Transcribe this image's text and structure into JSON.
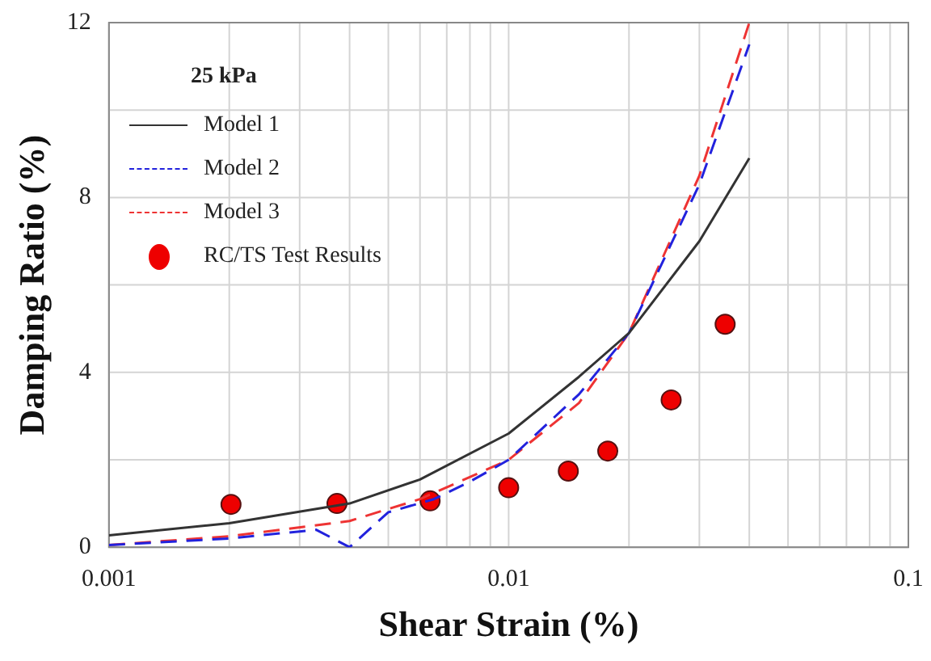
{
  "chart_data": {
    "type": "line",
    "xlabel": "Shear Strain (%)",
    "ylabel": "Damping Ratio (%)",
    "legend_title": "25 kPa",
    "log": "x",
    "xlim": [
      0.001,
      0.1
    ],
    "xticks": [
      0.001,
      0.01,
      0.1
    ],
    "ylim": [
      0,
      12
    ],
    "yticks": [
      0,
      {
        "value": 2,
        "label": null
      },
      4,
      {
        "value": 6,
        "label": null
      },
      8,
      {
        "value": 10,
        "label": null
      },
      12
    ],
    "grid": true,
    "legend": "top left",
    "marker": "none",
    "series": [
      {
        "name": "Model 1",
        "color": "#333333",
        "line_style": "solid",
        "x": [
          0.001,
          0.002,
          0.004,
          0.006,
          0.01,
          0.015,
          0.02,
          0.03,
          0.04
        ],
        "values": [
          0.27,
          0.55,
          1.0,
          1.55,
          2.6,
          3.9,
          4.9,
          7.0,
          8.9
        ]
      },
      {
        "name": "Model 2",
        "color": "#2222dd",
        "line_style": "dashed",
        "x": [
          0.001,
          0.002,
          0.0033,
          0.004,
          0.005,
          0.0065,
          0.008,
          0.01,
          0.015,
          0.02,
          0.03,
          0.04
        ],
        "values": [
          0.05,
          0.2,
          0.4,
          0.0,
          0.8,
          1.1,
          1.5,
          2.0,
          3.5,
          4.9,
          8.3,
          11.5
        ]
      },
      {
        "name": "Model 3",
        "color": "#ee3333",
        "line_style": "dashed",
        "x": [
          0.001,
          0.002,
          0.004,
          0.006,
          0.01,
          0.015,
          0.02,
          0.03,
          0.04
        ],
        "values": [
          0.05,
          0.25,
          0.6,
          1.1,
          2.0,
          3.3,
          4.9,
          8.5,
          12
        ]
      },
      {
        "name": "RC/TS Test Results",
        "type": "scatter",
        "marker": "circle",
        "color": "#ee0000",
        "x": [
          0.00202,
          0.00372,
          0.00636,
          0.01,
          0.0141,
          0.0177,
          0.0255,
          0.0348
        ],
        "values": [
          0.98,
          1.0,
          1.06,
          1.36,
          1.74,
          2.2,
          3.37,
          5.1
        ]
      }
    ]
  }
}
